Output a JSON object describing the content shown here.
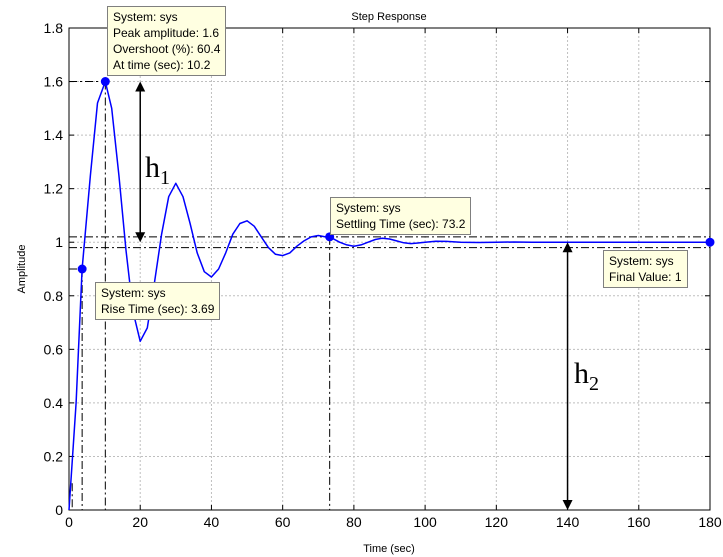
{
  "chart_data": {
    "type": "line",
    "title": "Step Response",
    "xlabel": "Time (sec)",
    "ylabel": "Amplitude",
    "xlim": [
      0,
      180
    ],
    "ylim": [
      0,
      1.8
    ],
    "grid": true,
    "xticks": [
      0,
      20,
      40,
      60,
      80,
      100,
      120,
      140,
      160,
      180
    ],
    "yticks": [
      0,
      0.2,
      0.4,
      0.6,
      0.8,
      1,
      1.2,
      1.4,
      1.6,
      1.8
    ],
    "ytick_labels": [
      "0",
      "0.2",
      "0.4",
      "0.6",
      "0.8",
      "1",
      "1.2",
      "1.4",
      "1.6",
      "1.8"
    ],
    "series": [
      {
        "color": "#0000ff",
        "x": [
          0,
          2,
          3.69,
          6,
          8,
          10.2,
          12,
          14,
          16,
          18,
          20,
          22,
          24,
          26,
          28,
          30,
          32,
          34,
          36,
          38,
          40,
          42,
          44,
          46,
          48,
          50,
          52,
          54,
          56,
          58,
          60,
          62,
          64,
          66,
          68,
          70,
          72,
          73.2,
          76,
          78,
          80,
          82,
          84,
          86,
          88,
          90,
          92,
          94,
          96,
          98,
          100,
          103,
          106,
          110,
          115,
          120,
          125,
          130,
          140,
          150,
          160,
          170,
          180
        ],
        "y": [
          0,
          0.4,
          0.9,
          1.25,
          1.52,
          1.6,
          1.5,
          1.25,
          0.97,
          0.74,
          0.63,
          0.68,
          0.85,
          1.03,
          1.17,
          1.22,
          1.17,
          1.07,
          0.96,
          0.89,
          0.87,
          0.9,
          0.96,
          1.03,
          1.07,
          1.08,
          1.06,
          1.02,
          0.98,
          0.955,
          0.95,
          0.96,
          0.985,
          1.005,
          1.02,
          1.025,
          1.02,
          1.02,
          1.0,
          0.99,
          0.985,
          0.99,
          1.0,
          1.01,
          1.015,
          1.012,
          1.005,
          0.998,
          0.995,
          0.997,
          1.0,
          1.004,
          1.003,
          1.0,
          0.999,
          1.0,
          1.001,
          1.0,
          1.0,
          1.0,
          1.0,
          1.0,
          1.0
        ]
      }
    ],
    "markers": [
      {
        "x": 3.69,
        "y": 0.9
      },
      {
        "x": 10.2,
        "y": 1.6
      },
      {
        "x": 73.2,
        "y": 1.02
      },
      {
        "x": 180,
        "y": 1.0
      }
    ],
    "reference_lines": {
      "settling_band": [
        0.98,
        1.02
      ],
      "final_value": 1.0,
      "rise_low": 0.1,
      "rise_high": 0.9
    },
    "annotations": {
      "h1": {
        "x": 20,
        "from": 1.0,
        "to": 1.6,
        "label": "h",
        "sub": "1"
      },
      "h2": {
        "x": 140,
        "from": 0.0,
        "to": 1.0,
        "label": "h",
        "sub": "2"
      }
    },
    "datatips": {
      "peak": [
        "System: sys",
        "Peak amplitude: 1.6",
        "Overshoot (%): 60.4",
        "At time (sec): 10.2"
      ],
      "rise": [
        "System: sys",
        "Rise Time (sec): 3.69"
      ],
      "settling": [
        "System: sys",
        "Settling Time (sec): 73.2"
      ],
      "final": [
        "System: sys",
        "Final Value: 1"
      ]
    }
  }
}
